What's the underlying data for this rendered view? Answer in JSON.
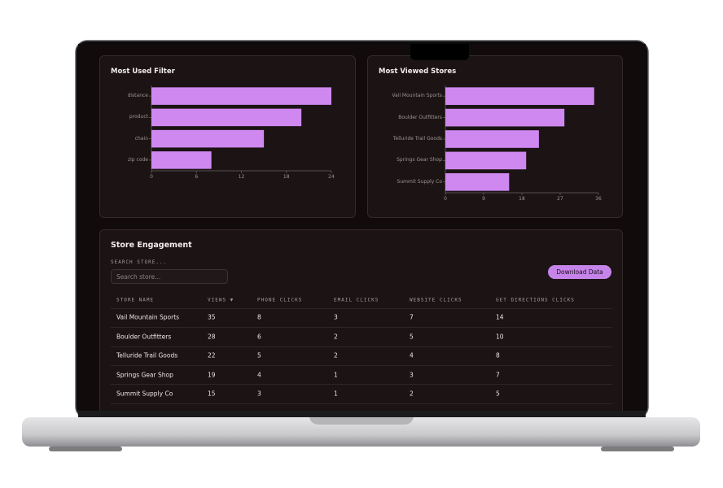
{
  "chart_data": [
    {
      "type": "bar",
      "title": "Most Used Filter",
      "categories": [
        "distance",
        "product",
        "chain",
        "zip code"
      ],
      "values": [
        24,
        20,
        15,
        8
      ],
      "color": "#cf88f0",
      "xlim": [
        0,
        24
      ],
      "xticks": [
        0,
        6,
        12,
        18,
        24
      ]
    },
    {
      "type": "bar",
      "title": "Most Viewed Stores",
      "categories": [
        "Vail Mountain Sports",
        "Boulder Outfitters",
        "Telluride Trail Goods",
        "Springs Gear Shop",
        "Summit Supply Co"
      ],
      "values": [
        35,
        28,
        22,
        19,
        15
      ],
      "color": "#cf88f0",
      "xlim": [
        0,
        36
      ],
      "xticks": [
        0,
        9,
        18,
        27,
        36
      ]
    }
  ],
  "engagement": {
    "title": "Store Engagement",
    "search_label": "SEARCH STORE...",
    "search_placeholder": "Search store...",
    "button": "Download Data",
    "columns": [
      "STORE NAME",
      "VIEWS ▼",
      "PHONE CLICKS",
      "EMAIL CLICKS",
      "WEBSITE CLICKS",
      "GET DIRECTIONS CLICKS"
    ],
    "rows": [
      [
        "Vail Mountain Sports",
        35,
        8,
        3,
        7,
        14
      ],
      [
        "Boulder Outfitters",
        28,
        6,
        2,
        5,
        10
      ],
      [
        "Telluride Trail Goods",
        22,
        5,
        2,
        4,
        8
      ],
      [
        "Springs Gear Shop",
        19,
        4,
        1,
        3,
        7
      ],
      [
        "Summit Supply Co",
        15,
        3,
        1,
        2,
        5
      ]
    ]
  }
}
